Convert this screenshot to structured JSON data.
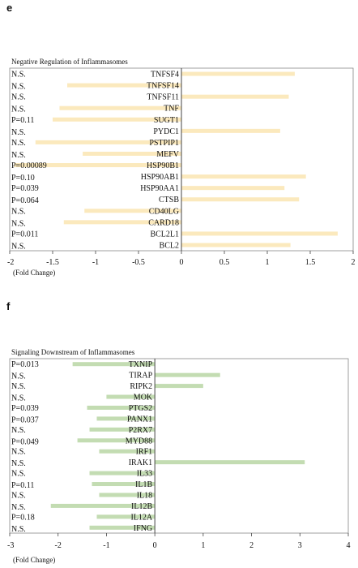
{
  "panels": {
    "e": {
      "letter": "e"
    },
    "f": {
      "letter": "f"
    }
  },
  "chart_data": [
    {
      "type": "bar",
      "orientation": "horizontal",
      "title": "Negative Regulation of Inflammasomes",
      "xlabel": "(Fold Change)",
      "xlim": [
        -2,
        2
      ],
      "xticks": [
        "-2",
        "-1.5",
        "-1",
        "-0.5",
        "0",
        "0.5",
        "1",
        "1.5",
        "2"
      ],
      "bar_color": "#fbe9bd",
      "categories": [
        "TNFSF4",
        "TNFSF14",
        "TNFSF11",
        "TNF",
        "SUGT1",
        "PYDC1",
        "PSTPIP1",
        "MEFV",
        "HSP90B1",
        "HSP90AB1",
        "HSP90AA1",
        "CTSB",
        "CD40LG",
        "CARD18",
        "BCL2L1",
        "BCL2"
      ],
      "values": [
        1.32,
        -1.33,
        1.25,
        -1.42,
        -1.5,
        1.15,
        -1.7,
        -1.15,
        -1.95,
        1.45,
        1.2,
        1.37,
        -1.13,
        -1.37,
        1.82,
        1.27
      ],
      "pvalues": [
        "N.S.",
        "N.S.",
        "N.S.",
        "N.S.",
        "P=0.11",
        "N.S.",
        "N.S.",
        "N.S.",
        "P=0.00089",
        "P=0.10",
        "P=0.039",
        "P=0.064",
        "N.S.",
        "N.S.",
        "P=0.011",
        "N.S."
      ],
      "grid": false,
      "legend": "none"
    },
    {
      "type": "bar",
      "orientation": "horizontal",
      "title": "Signaling Downstream of Inflammasomes",
      "xlabel": "(Fold Change)",
      "xlim": [
        -3,
        4
      ],
      "xticks": [
        "-3",
        "-2",
        "-1",
        "0",
        "1",
        "2",
        "3",
        "4"
      ],
      "bar_color": "#c3dcb2",
      "categories": [
        "TXNIP",
        "TIRAP",
        "RIPK2",
        "MOK",
        "PTGS2",
        "PANX1",
        "P2RX7",
        "MYD88",
        "IRF1",
        "IRAK1",
        "IL33",
        "IL1B",
        "IL18",
        "IL12B",
        "IL12A",
        "IFNG"
      ],
      "values": [
        -1.7,
        1.35,
        1.0,
        -1.0,
        -1.4,
        -1.2,
        -1.35,
        -1.6,
        -1.15,
        3.1,
        -1.35,
        -1.3,
        -1.15,
        -2.15,
        -1.2,
        -1.35
      ],
      "pvalues": [
        "P=0.013",
        "N.S.",
        "N.S.",
        "N.S.",
        "P=0.039",
        "P=0.037",
        "N.S.",
        "P=0.049",
        "N.S.",
        "N.S.",
        "N.S.",
        "P=0.11",
        "N.S.",
        "N.S.",
        "P=0.18",
        "N.S."
      ],
      "grid": false,
      "legend": "none"
    }
  ]
}
